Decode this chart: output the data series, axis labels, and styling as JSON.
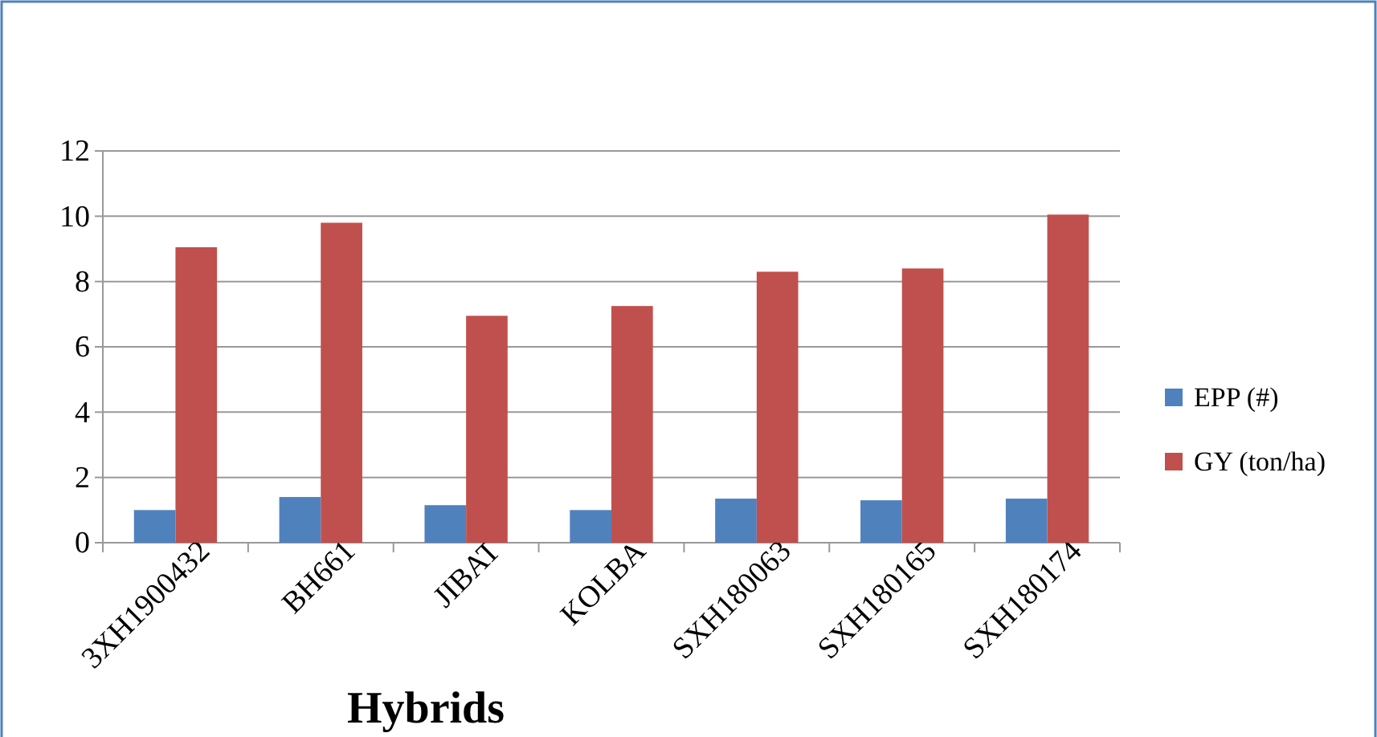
{
  "chart_data": {
    "type": "bar",
    "xlabel": "Hybrids",
    "categories": [
      "3XH1900432",
      "BH661",
      "JIBAT",
      "KOLBA",
      "SXH180063",
      "SXH180165",
      "SXH180174"
    ],
    "series": [
      {
        "name": "EPP (#)",
        "color": "#4f81bd",
        "values": [
          1.0,
          1.4,
          1.15,
          1.0,
          1.35,
          1.3,
          1.35
        ]
      },
      {
        "name": "GY (ton/ha)",
        "color": "#c0504d",
        "values": [
          9.05,
          9.8,
          6.95,
          7.25,
          8.3,
          8.4,
          10.05
        ]
      }
    ],
    "ylim": [
      0,
      12
    ],
    "yticks": [
      0,
      2,
      4,
      6,
      8,
      10,
      12
    ],
    "grid": "y",
    "legend": "right"
  }
}
